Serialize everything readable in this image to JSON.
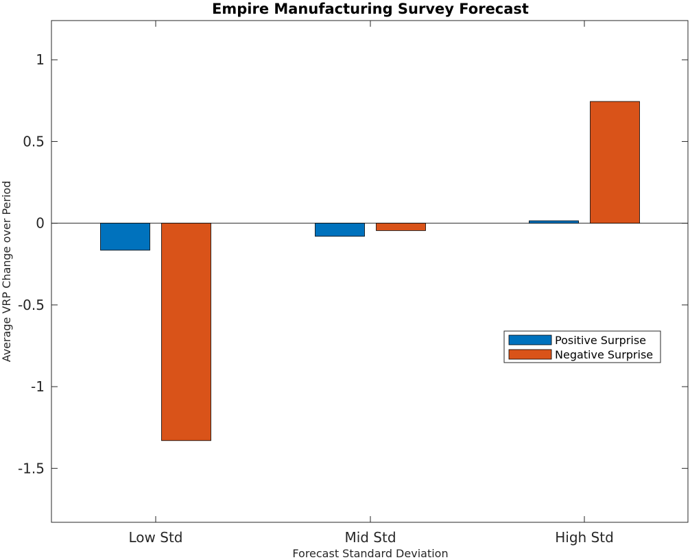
{
  "chart_data": {
    "type": "bar",
    "title": "Empire Manufacturing Survey Forecast",
    "xlabel": "Forecast Standard Deviation",
    "ylabel": "Average VRP Change over Period",
    "categories": [
      "Low Std",
      "Mid Std",
      "High Std"
    ],
    "series": [
      {
        "name": "Positive Surprise",
        "color": "#0072BD",
        "values": [
          -0.165,
          -0.08,
          0.015
        ]
      },
      {
        "name": "Negative Surprise",
        "color": "#D95319",
        "values": [
          -1.33,
          -0.045,
          0.745
        ]
      }
    ],
    "ylim": [
      -1.83,
      1.24
    ],
    "yticks": [
      1,
      0.5,
      0,
      -0.5,
      -1,
      -1.5
    ],
    "ytick_labels": [
      "1",
      "0.5",
      "0",
      "-0.5",
      "-1",
      "-1.5"
    ],
    "grid": false,
    "legend_position": "right"
  }
}
